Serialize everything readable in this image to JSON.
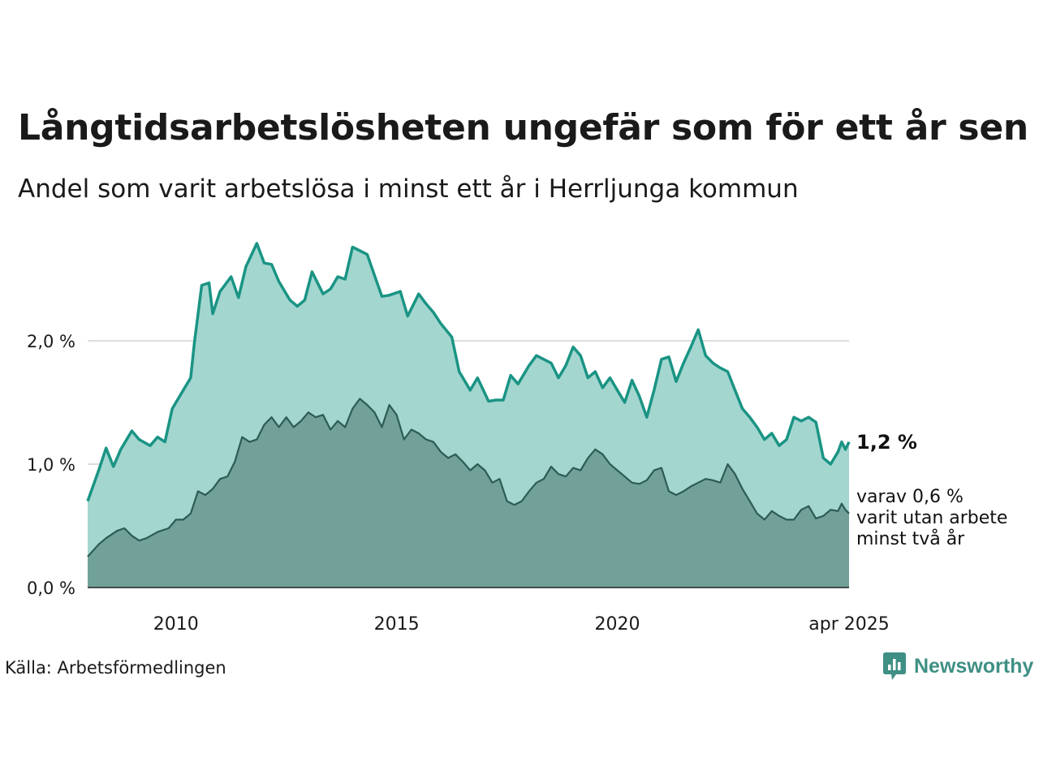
{
  "title": "Långtidsarbetslösheten ungefär som för ett år sen",
  "subtitle": "Andel som varit arbetslösa i minst ett år i Herrljunga kommun",
  "source": "Källa: Arbetsförmedlingen",
  "brand": "Newsworthy",
  "colors": {
    "upper_line": "#1a9484",
    "upper_fill": "#a4d6d0",
    "lower_line": "#2d5c55",
    "lower_fill": "#71a198",
    "brand": "#3f8f84"
  },
  "chart_data": {
    "type": "area",
    "x_range": [
      "2008-01",
      "2025-04"
    ],
    "ylim": [
      0,
      2.8
    ],
    "y_ticks": [
      {
        "value": 0,
        "label": "0,0 %"
      },
      {
        "value": 1,
        "label": "1,0 %"
      },
      {
        "value": 2,
        "label": "2,0 %"
      }
    ],
    "x_ticks": [
      {
        "date": "2010-01",
        "label": "2010"
      },
      {
        "date": "2015-01",
        "label": "2015"
      },
      {
        "date": "2020-01",
        "label": "2020"
      },
      {
        "date": "2025-04",
        "label": "apr 2025"
      }
    ],
    "grid": "horizontal",
    "end_labels": {
      "main": "1,2 %",
      "sub": [
        "varav 0,6 %",
        "varit utan arbete",
        "minst två år"
      ]
    },
    "series": [
      {
        "unit": "%",
        "points": [
          [
            "2008-01",
            0.7
          ],
          [
            "2008-04",
            0.95
          ],
          [
            "2008-06",
            1.13
          ],
          [
            "2008-08",
            0.98
          ],
          [
            "2008-10",
            1.12
          ],
          [
            "2009-01",
            1.27
          ],
          [
            "2009-03",
            1.2
          ],
          [
            "2009-06",
            1.15
          ],
          [
            "2009-08",
            1.22
          ],
          [
            "2009-10",
            1.18
          ],
          [
            "2009-12",
            1.45
          ],
          [
            "2010-03",
            1.6
          ],
          [
            "2010-05",
            1.7
          ],
          [
            "2010-06",
            1.98
          ],
          [
            "2010-08",
            2.45
          ],
          [
            "2010-10",
            2.47
          ],
          [
            "2010-11",
            2.22
          ],
          [
            "2011-01",
            2.4
          ],
          [
            "2011-04",
            2.52
          ],
          [
            "2011-06",
            2.35
          ],
          [
            "2011-08",
            2.6
          ],
          [
            "2011-11",
            2.79
          ],
          [
            "2012-01",
            2.63
          ],
          [
            "2012-03",
            2.62
          ],
          [
            "2012-05",
            2.48
          ],
          [
            "2012-08",
            2.33
          ],
          [
            "2012-10",
            2.28
          ],
          [
            "2012-12",
            2.33
          ],
          [
            "2013-02",
            2.56
          ],
          [
            "2013-05",
            2.38
          ],
          [
            "2013-07",
            2.42
          ],
          [
            "2013-09",
            2.52
          ],
          [
            "2013-11",
            2.5
          ],
          [
            "2014-01",
            2.76
          ],
          [
            "2014-03",
            2.73
          ],
          [
            "2014-05",
            2.7
          ],
          [
            "2014-07",
            2.53
          ],
          [
            "2014-09",
            2.36
          ],
          [
            "2014-11",
            2.37
          ],
          [
            "2015-02",
            2.4
          ],
          [
            "2015-04",
            2.2
          ],
          [
            "2015-07",
            2.38
          ],
          [
            "2015-09",
            2.3
          ],
          [
            "2015-11",
            2.23
          ],
          [
            "2016-01",
            2.14
          ],
          [
            "2016-04",
            2.03
          ],
          [
            "2016-06",
            1.75
          ],
          [
            "2016-09",
            1.6
          ],
          [
            "2016-11",
            1.7
          ],
          [
            "2017-02",
            1.51
          ],
          [
            "2017-04",
            1.52
          ],
          [
            "2017-06",
            1.52
          ],
          [
            "2017-08",
            1.72
          ],
          [
            "2017-10",
            1.65
          ],
          [
            "2018-01",
            1.8
          ],
          [
            "2018-03",
            1.88
          ],
          [
            "2018-05",
            1.85
          ],
          [
            "2018-07",
            1.82
          ],
          [
            "2018-09",
            1.7
          ],
          [
            "2018-11",
            1.8
          ],
          [
            "2019-01",
            1.95
          ],
          [
            "2019-03",
            1.88
          ],
          [
            "2019-05",
            1.7
          ],
          [
            "2019-07",
            1.75
          ],
          [
            "2019-09",
            1.62
          ],
          [
            "2019-11",
            1.7
          ],
          [
            "2020-01",
            1.6
          ],
          [
            "2020-03",
            1.5
          ],
          [
            "2020-05",
            1.68
          ],
          [
            "2020-07",
            1.55
          ],
          [
            "2020-09",
            1.38
          ],
          [
            "2020-11",
            1.6
          ],
          [
            "2021-01",
            1.85
          ],
          [
            "2021-03",
            1.87
          ],
          [
            "2021-05",
            1.67
          ],
          [
            "2021-07",
            1.82
          ],
          [
            "2021-09",
            1.95
          ],
          [
            "2021-11",
            2.09
          ],
          [
            "2022-01",
            1.88
          ],
          [
            "2022-03",
            1.82
          ],
          [
            "2022-05",
            1.78
          ],
          [
            "2022-07",
            1.75
          ],
          [
            "2022-09",
            1.6
          ],
          [
            "2022-11",
            1.45
          ],
          [
            "2023-01",
            1.38
          ],
          [
            "2023-03",
            1.3
          ],
          [
            "2023-05",
            1.2
          ],
          [
            "2023-07",
            1.25
          ],
          [
            "2023-09",
            1.15
          ],
          [
            "2023-11",
            1.2
          ],
          [
            "2024-01",
            1.38
          ],
          [
            "2024-03",
            1.35
          ],
          [
            "2024-05",
            1.38
          ],
          [
            "2024-07",
            1.34
          ],
          [
            "2024-09",
            1.05
          ],
          [
            "2024-11",
            1.0
          ],
          [
            "2025-01",
            1.1
          ],
          [
            "2025-02",
            1.18
          ],
          [
            "2025-03",
            1.12
          ],
          [
            "2025-04",
            1.18
          ]
        ]
      },
      {
        "unit": "%",
        "points": [
          [
            "2008-01",
            0.25
          ],
          [
            "2008-04",
            0.35
          ],
          [
            "2008-06",
            0.4
          ],
          [
            "2008-09",
            0.46
          ],
          [
            "2008-11",
            0.48
          ],
          [
            "2009-01",
            0.42
          ],
          [
            "2009-03",
            0.38
          ],
          [
            "2009-05",
            0.4
          ],
          [
            "2009-08",
            0.45
          ],
          [
            "2009-11",
            0.48
          ],
          [
            "2010-01",
            0.55
          ],
          [
            "2010-03",
            0.55
          ],
          [
            "2010-05",
            0.6
          ],
          [
            "2010-07",
            0.78
          ],
          [
            "2010-09",
            0.75
          ],
          [
            "2010-11",
            0.8
          ],
          [
            "2011-01",
            0.88
          ],
          [
            "2011-03",
            0.9
          ],
          [
            "2011-05",
            1.02
          ],
          [
            "2011-07",
            1.22
          ],
          [
            "2011-09",
            1.18
          ],
          [
            "2011-11",
            1.2
          ],
          [
            "2012-01",
            1.32
          ],
          [
            "2012-03",
            1.38
          ],
          [
            "2012-05",
            1.3
          ],
          [
            "2012-07",
            1.38
          ],
          [
            "2012-09",
            1.3
          ],
          [
            "2012-11",
            1.35
          ],
          [
            "2013-01",
            1.42
          ],
          [
            "2013-03",
            1.38
          ],
          [
            "2013-05",
            1.4
          ],
          [
            "2013-07",
            1.28
          ],
          [
            "2013-09",
            1.35
          ],
          [
            "2013-11",
            1.3
          ],
          [
            "2014-01",
            1.45
          ],
          [
            "2014-03",
            1.53
          ],
          [
            "2014-05",
            1.48
          ],
          [
            "2014-07",
            1.42
          ],
          [
            "2014-09",
            1.3
          ],
          [
            "2014-11",
            1.48
          ],
          [
            "2015-01",
            1.4
          ],
          [
            "2015-03",
            1.2
          ],
          [
            "2015-05",
            1.28
          ],
          [
            "2015-07",
            1.25
          ],
          [
            "2015-09",
            1.2
          ],
          [
            "2015-11",
            1.18
          ],
          [
            "2016-01",
            1.1
          ],
          [
            "2016-03",
            1.05
          ],
          [
            "2016-05",
            1.08
          ],
          [
            "2016-07",
            1.02
          ],
          [
            "2016-09",
            0.95
          ],
          [
            "2016-11",
            1.0
          ],
          [
            "2017-01",
            0.95
          ],
          [
            "2017-03",
            0.85
          ],
          [
            "2017-05",
            0.88
          ],
          [
            "2017-07",
            0.7
          ],
          [
            "2017-09",
            0.67
          ],
          [
            "2017-11",
            0.7
          ],
          [
            "2018-01",
            0.78
          ],
          [
            "2018-03",
            0.85
          ],
          [
            "2018-05",
            0.88
          ],
          [
            "2018-07",
            0.98
          ],
          [
            "2018-09",
            0.92
          ],
          [
            "2018-11",
            0.9
          ],
          [
            "2019-01",
            0.97
          ],
          [
            "2019-03",
            0.95
          ],
          [
            "2019-05",
            1.05
          ],
          [
            "2019-07",
            1.12
          ],
          [
            "2019-09",
            1.08
          ],
          [
            "2019-11",
            1.0
          ],
          [
            "2020-01",
            0.95
          ],
          [
            "2020-03",
            0.9
          ],
          [
            "2020-05",
            0.85
          ],
          [
            "2020-07",
            0.84
          ],
          [
            "2020-09",
            0.87
          ],
          [
            "2020-11",
            0.95
          ],
          [
            "2021-01",
            0.97
          ],
          [
            "2021-03",
            0.78
          ],
          [
            "2021-05",
            0.75
          ],
          [
            "2021-07",
            0.78
          ],
          [
            "2021-09",
            0.82
          ],
          [
            "2021-11",
            0.85
          ],
          [
            "2022-01",
            0.88
          ],
          [
            "2022-03",
            0.87
          ],
          [
            "2022-05",
            0.85
          ],
          [
            "2022-07",
            1.0
          ],
          [
            "2022-09",
            0.92
          ],
          [
            "2022-11",
            0.8
          ],
          [
            "2023-01",
            0.7
          ],
          [
            "2023-03",
            0.6
          ],
          [
            "2023-05",
            0.55
          ],
          [
            "2023-07",
            0.62
          ],
          [
            "2023-09",
            0.58
          ],
          [
            "2023-11",
            0.55
          ],
          [
            "2024-01",
            0.55
          ],
          [
            "2024-03",
            0.63
          ],
          [
            "2024-05",
            0.66
          ],
          [
            "2024-07",
            0.56
          ],
          [
            "2024-09",
            0.58
          ],
          [
            "2024-11",
            0.63
          ],
          [
            "2025-01",
            0.62
          ],
          [
            "2025-02",
            0.68
          ],
          [
            "2025-03",
            0.63
          ],
          [
            "2025-04",
            0.6
          ]
        ]
      }
    ]
  }
}
